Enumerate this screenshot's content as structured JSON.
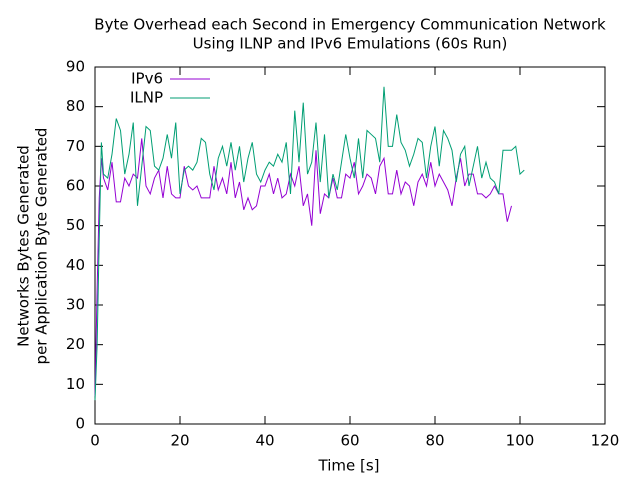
{
  "chart_data": {
    "type": "line",
    "title": [
      "Byte Overhead each Second in Emergency Communication Network",
      "Using ILNP and IPv6 Emulations (60s Run)"
    ],
    "x_label": "Time [s]",
    "y_label": [
      "Networks Bytes Generated",
      "per Application Byte Generated"
    ],
    "xlim": [
      0,
      120
    ],
    "xticks": [
      0,
      20,
      40,
      60,
      80,
      100,
      120
    ],
    "ylim": [
      0,
      90
    ],
    "yticks": [
      0,
      10,
      20,
      30,
      40,
      50,
      60,
      70,
      80,
      90
    ],
    "grid": false,
    "legend_position": "top-left",
    "series": [
      {
        "name": "IPv6",
        "color": "#9400d3",
        "x": [
          0,
          0.5,
          1,
          1.5,
          2,
          3,
          4,
          5,
          6,
          7,
          8,
          9,
          10,
          11,
          12,
          13,
          14,
          15,
          16,
          17,
          18,
          19,
          20,
          21,
          22,
          23,
          24,
          25,
          26,
          27,
          28,
          29,
          30,
          31,
          32,
          33,
          34,
          35,
          36,
          37,
          38,
          39,
          40,
          41,
          42,
          43,
          44,
          45,
          46,
          47,
          48,
          49,
          50,
          51,
          52,
          53,
          54,
          55,
          56,
          57,
          58,
          59,
          60,
          61,
          62,
          63,
          64,
          65,
          66,
          67,
          68,
          69,
          70,
          71,
          72,
          73,
          74,
          75,
          76,
          77,
          78,
          79,
          80,
          81,
          82,
          83,
          84,
          85,
          86,
          87,
          88,
          89,
          90,
          91,
          92,
          93,
          94,
          95,
          96,
          97,
          98
        ],
        "values": [
          7,
          34,
          57,
          67,
          62,
          59,
          66,
          56,
          56,
          62,
          60,
          63,
          62,
          72,
          60,
          58,
          62,
          64,
          57,
          65,
          58,
          57,
          57,
          65,
          60,
          59,
          60,
          57,
          57,
          57,
          65,
          59,
          62,
          58,
          66,
          57,
          61,
          54,
          57,
          54,
          55,
          60,
          60,
          63,
          58,
          62,
          57,
          58,
          63,
          60,
          65,
          55,
          58,
          50,
          69,
          53,
          58,
          57,
          62,
          57,
          57,
          63,
          62,
          66,
          58,
          60,
          63,
          62,
          58,
          65,
          67,
          58,
          58,
          64,
          58,
          61,
          60,
          55,
          61,
          63,
          60,
          66,
          60,
          63,
          61,
          59,
          55,
          62,
          67,
          60,
          63,
          63,
          58,
          58,
          57,
          58,
          60,
          58,
          58,
          51,
          55
        ]
      },
      {
        "name": "ILNP",
        "color": "#009e73",
        "x": [
          0,
          0.5,
          1,
          1.5,
          2,
          3,
          4,
          5,
          6,
          7,
          8,
          9,
          10,
          11,
          12,
          13,
          14,
          15,
          16,
          17,
          18,
          19,
          20,
          21,
          22,
          23,
          24,
          25,
          26,
          27,
          28,
          29,
          30,
          31,
          32,
          33,
          34,
          35,
          36,
          37,
          38,
          39,
          40,
          41,
          42,
          43,
          44,
          45,
          46,
          47,
          48,
          49,
          50,
          51,
          52,
          53,
          54,
          55,
          56,
          57,
          58,
          59,
          60,
          61,
          62,
          63,
          64,
          65,
          66,
          67,
          68,
          69,
          70,
          71,
          72,
          73,
          74,
          75,
          76,
          77,
          78,
          79,
          80,
          81,
          82,
          83,
          84,
          85,
          86,
          87,
          88,
          89,
          90,
          91,
          92,
          93,
          94,
          95,
          96,
          97,
          98,
          99,
          100,
          101
        ],
        "values": [
          6,
          20,
          47,
          71,
          63,
          62,
          68,
          77,
          74,
          63,
          68,
          76,
          55,
          65,
          75,
          74,
          65,
          64,
          67,
          73,
          67,
          76,
          58,
          64,
          65,
          64,
          66,
          72,
          71,
          63,
          59,
          67,
          70,
          65,
          71,
          64,
          70,
          61,
          67,
          71,
          63,
          61,
          64,
          66,
          65,
          68,
          66,
          71,
          58,
          79,
          66,
          81,
          63,
          66,
          76,
          61,
          73,
          57,
          63,
          59,
          66,
          73,
          67,
          62,
          72,
          62,
          74,
          73,
          72,
          66,
          85,
          70,
          70,
          78,
          71,
          69,
          65,
          68,
          72,
          71,
          62,
          70,
          75,
          65,
          74,
          72,
          69,
          61,
          68,
          70,
          60,
          65,
          70,
          62,
          66,
          62,
          61,
          58,
          69,
          69,
          69,
          70,
          63,
          64
        ]
      }
    ]
  }
}
